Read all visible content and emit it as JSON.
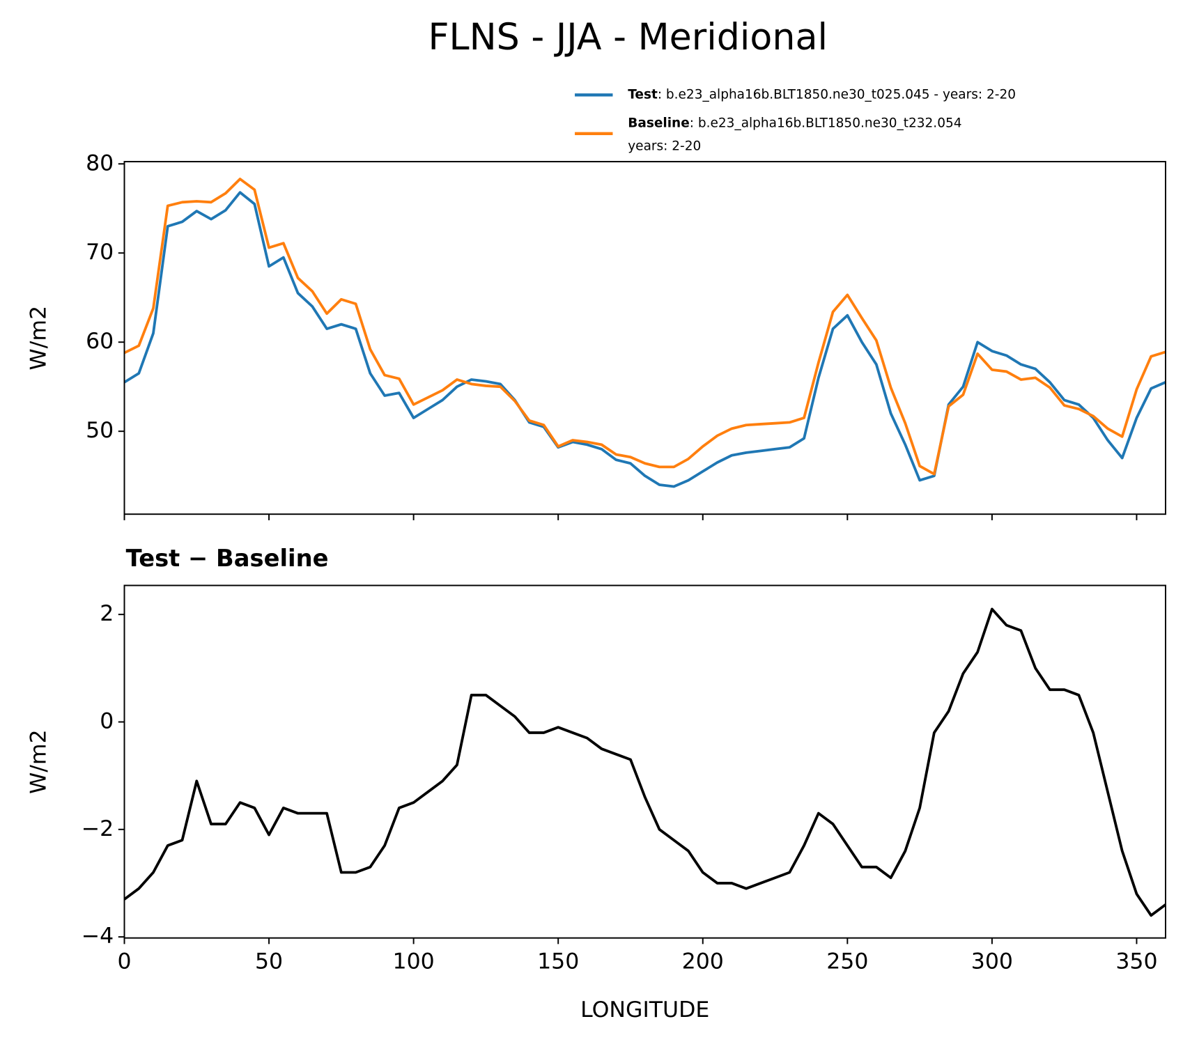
{
  "chart_data": [
    {
      "type": "line",
      "title": "FLNS - JJA - Meridional",
      "ylabel": "W/m2",
      "x": [
        0,
        5,
        10,
        15,
        20,
        25,
        30,
        35,
        40,
        45,
        50,
        55,
        60,
        65,
        70,
        75,
        80,
        85,
        90,
        95,
        100,
        105,
        110,
        115,
        120,
        125,
        130,
        135,
        140,
        145,
        150,
        155,
        160,
        165,
        170,
        175,
        180,
        185,
        190,
        195,
        200,
        205,
        210,
        215,
        220,
        225,
        230,
        235,
        240,
        245,
        250,
        255,
        260,
        265,
        270,
        275,
        280,
        285,
        290,
        295,
        300,
        305,
        310,
        315,
        320,
        325,
        330,
        335,
        340,
        345,
        350,
        355,
        360
      ],
      "series": [
        {
          "name": "Test",
          "description": [
            ": b.e23_alpha16b.BLT1850.ne30_t025.045 - years: 2-20"
          ],
          "color": "#1f77b4",
          "values": [
            55.5,
            56.5,
            61,
            73,
            73.5,
            74.7,
            73.8,
            74.8,
            76.8,
            75.5,
            68.5,
            69.5,
            65.5,
            64,
            61.5,
            62,
            61.5,
            56.5,
            54,
            54.3,
            51.5,
            52.5,
            53.5,
            55,
            55.8,
            55.6,
            55.3,
            53.5,
            51,
            50.5,
            48.2,
            48.8,
            48.5,
            48,
            46.8,
            46.4,
            45,
            44,
            43.8,
            44.5,
            45.5,
            46.5,
            47.3,
            47.6,
            47.8,
            48,
            48.2,
            49.2,
            56,
            61.5,
            63,
            60,
            57.5,
            52,
            48.5,
            44.5,
            45,
            53,
            55,
            60,
            59,
            58.5,
            57.5,
            57,
            55.5,
            53.5,
            53,
            51.5,
            49,
            47,
            51.5,
            54.8,
            55.5
          ]
        },
        {
          "name": "Baseline",
          "description": [
            ": b.e23_alpha16b.BLT1850.ne30_t232.054",
            "years: 2-20"
          ],
          "color": "#ff7f0e",
          "values": [
            58.8,
            59.6,
            63.8,
            75.3,
            75.7,
            75.8,
            75.7,
            76.7,
            78.3,
            77.1,
            70.6,
            71.1,
            67.2,
            65.7,
            63.2,
            64.8,
            64.3,
            59.2,
            56.3,
            55.9,
            53,
            53.8,
            54.6,
            55.8,
            55.3,
            55.1,
            55,
            53.4,
            51.2,
            50.7,
            48.3,
            49,
            48.8,
            48.5,
            47.4,
            47.1,
            46.4,
            46,
            46,
            46.9,
            48.3,
            49.5,
            50.3,
            50.7,
            50.8,
            50.9,
            51,
            51.5,
            57.7,
            63.4,
            65.3,
            62.7,
            60.2,
            54.9,
            50.9,
            46.1,
            45.2,
            52.8,
            54.1,
            58.7,
            56.9,
            56.7,
            55.8,
            56,
            54.9,
            52.9,
            52.5,
            51.7,
            50.3,
            49.4,
            54.7,
            58.4,
            58.9
          ]
        }
      ],
      "xlim": [
        0,
        360
      ],
      "xticks": [
        0,
        50,
        100,
        150,
        200,
        250,
        300,
        350
      ],
      "xtick_labels": false,
      "ylim": [
        40.7,
        80.25
      ],
      "yticks": [
        50,
        60,
        70,
        80
      ]
    },
    {
      "type": "line",
      "title": "Test − Baseline",
      "ylabel": "W/m2",
      "xlabel": "LONGITUDE",
      "x": [
        0,
        5,
        10,
        15,
        20,
        25,
        30,
        35,
        40,
        45,
        50,
        55,
        60,
        65,
        70,
        75,
        80,
        85,
        90,
        95,
        100,
        105,
        110,
        115,
        120,
        125,
        130,
        135,
        140,
        145,
        150,
        155,
        160,
        165,
        170,
        175,
        180,
        185,
        190,
        195,
        200,
        205,
        210,
        215,
        220,
        225,
        230,
        235,
        240,
        245,
        250,
        255,
        260,
        265,
        270,
        275,
        280,
        285,
        290,
        295,
        300,
        305,
        310,
        315,
        320,
        325,
        330,
        335,
        340,
        345,
        350,
        355,
        360
      ],
      "series": [
        {
          "color": "#000000",
          "values": [
            -3.3,
            -3.1,
            -2.8,
            -2.3,
            -2.2,
            -1.1,
            -1.9,
            -1.9,
            -1.5,
            -1.6,
            -2.1,
            -1.6,
            -1.7,
            -1.7,
            -1.7,
            -2.8,
            -2.8,
            -2.7,
            -2.3,
            -1.6,
            -1.5,
            -1.3,
            -1.1,
            -0.8,
            0.5,
            0.5,
            0.3,
            0.1,
            -0.2,
            -0.2,
            -0.1,
            -0.2,
            -0.3,
            -0.5,
            -0.6,
            -0.7,
            -1.4,
            -2,
            -2.2,
            -2.4,
            -2.8,
            -3,
            -3,
            -3.1,
            -3,
            -2.9,
            -2.8,
            -2.3,
            -1.7,
            -1.9,
            -2.3,
            -2.7,
            -2.7,
            -2.9,
            -2.4,
            -1.6,
            -0.2,
            0.2,
            0.9,
            1.3,
            2.1,
            1.8,
            1.7,
            1,
            0.6,
            0.6,
            0.5,
            -0.2,
            -1.3,
            -2.4,
            -3.2,
            -3.6,
            -3.4
          ]
        }
      ],
      "xlim": [
        0,
        360
      ],
      "xticks": [
        0,
        50,
        100,
        150,
        200,
        250,
        300,
        350
      ],
      "xtick_labels": true,
      "ylim": [
        -4.02,
        2.54
      ],
      "yticks": [
        {
          "value": -4,
          "label": "−4"
        },
        {
          "value": -2,
          "label": "−2"
        },
        0,
        2
      ]
    }
  ]
}
